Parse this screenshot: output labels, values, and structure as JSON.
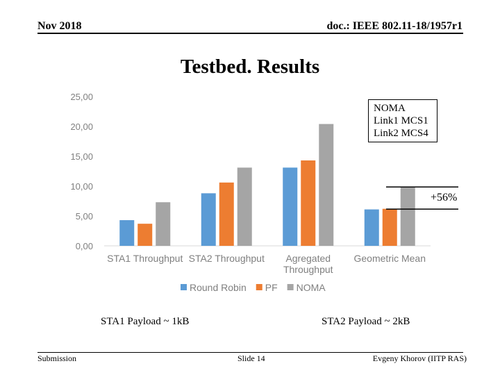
{
  "header": {
    "date": "Nov 2018",
    "doc": "doc.: IEEE 802.11-18/1957r1"
  },
  "title": "Testbed. Results",
  "chart_data": {
    "type": "bar",
    "categories": [
      [
        "STA1 Throughput"
      ],
      [
        "STA2 Throughput"
      ],
      [
        "Agregated",
        "Throughput"
      ],
      [
        "Geometric Mean"
      ]
    ],
    "series": [
      {
        "name": "Round Robin",
        "color": "#5b9bd5",
        "values": [
          4.3,
          8.8,
          13.1,
          6.1
        ]
      },
      {
        "name": "PF",
        "color": "#ed7d31",
        "values": [
          3.7,
          10.6,
          14.3,
          6.2
        ]
      },
      {
        "name": "NOMA",
        "color": "#a5a5a5",
        "values": [
          7.3,
          13.1,
          20.4,
          9.8
        ]
      }
    ],
    "ylim": [
      0,
      25
    ],
    "yticks": [
      "0,00",
      "5,00",
      "10,00",
      "15,00",
      "20,00",
      "25,00"
    ],
    "legend_position": "bottom",
    "annotation_box": [
      "NOMA",
      "Link1 MCS1",
      "Link2 MCS4"
    ],
    "annotation_delta": "+56%"
  },
  "payload_labels": [
    "STA1 Payload ~ 1kB",
    "STA2 Payload ~ 2kB"
  ],
  "footer": {
    "left": "Submission",
    "center": "Slide 14",
    "right": "Evgeny Khorov (IITP RAS)"
  }
}
